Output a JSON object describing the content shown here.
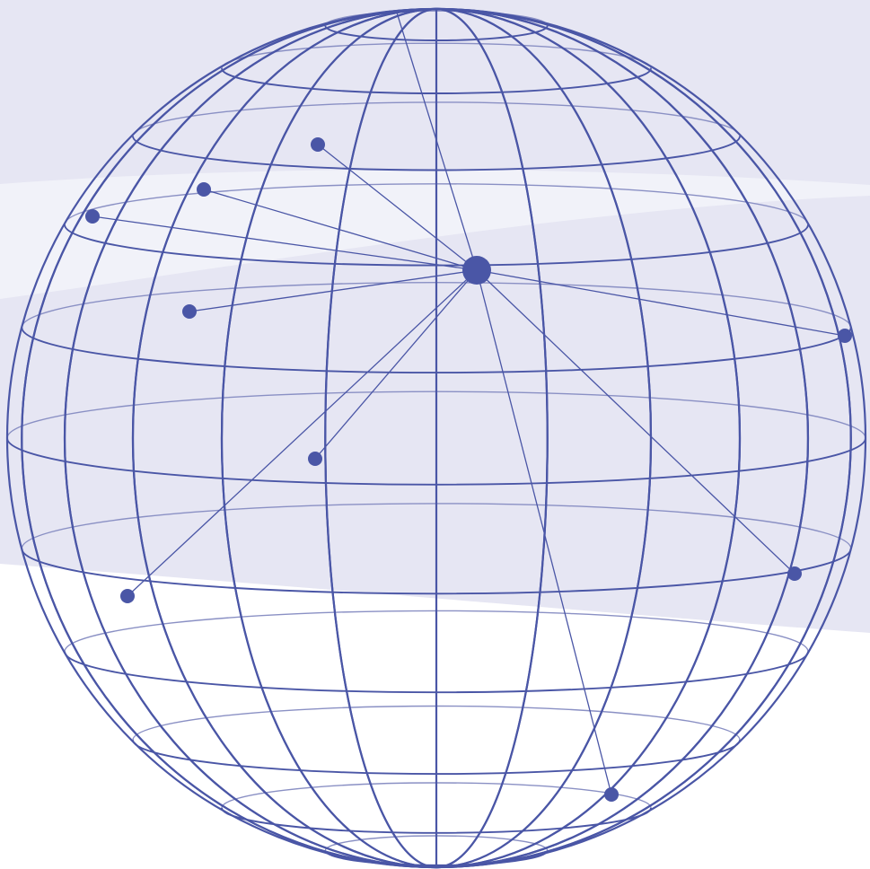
{
  "colors": {
    "background": "#ffffff",
    "band_main": "#e6e6f3",
    "band_highlight": "#f1f2f9",
    "wire": "#4a56a6",
    "wire_back": "#8a90c4",
    "node": "#4a56a6"
  },
  "icons": {
    "globe": "wireframe-globe-icon",
    "hub": "hub-node-icon",
    "leaf": "leaf-node-icon"
  },
  "network": {
    "hub_count": 1,
    "leaf_count": 10
  }
}
